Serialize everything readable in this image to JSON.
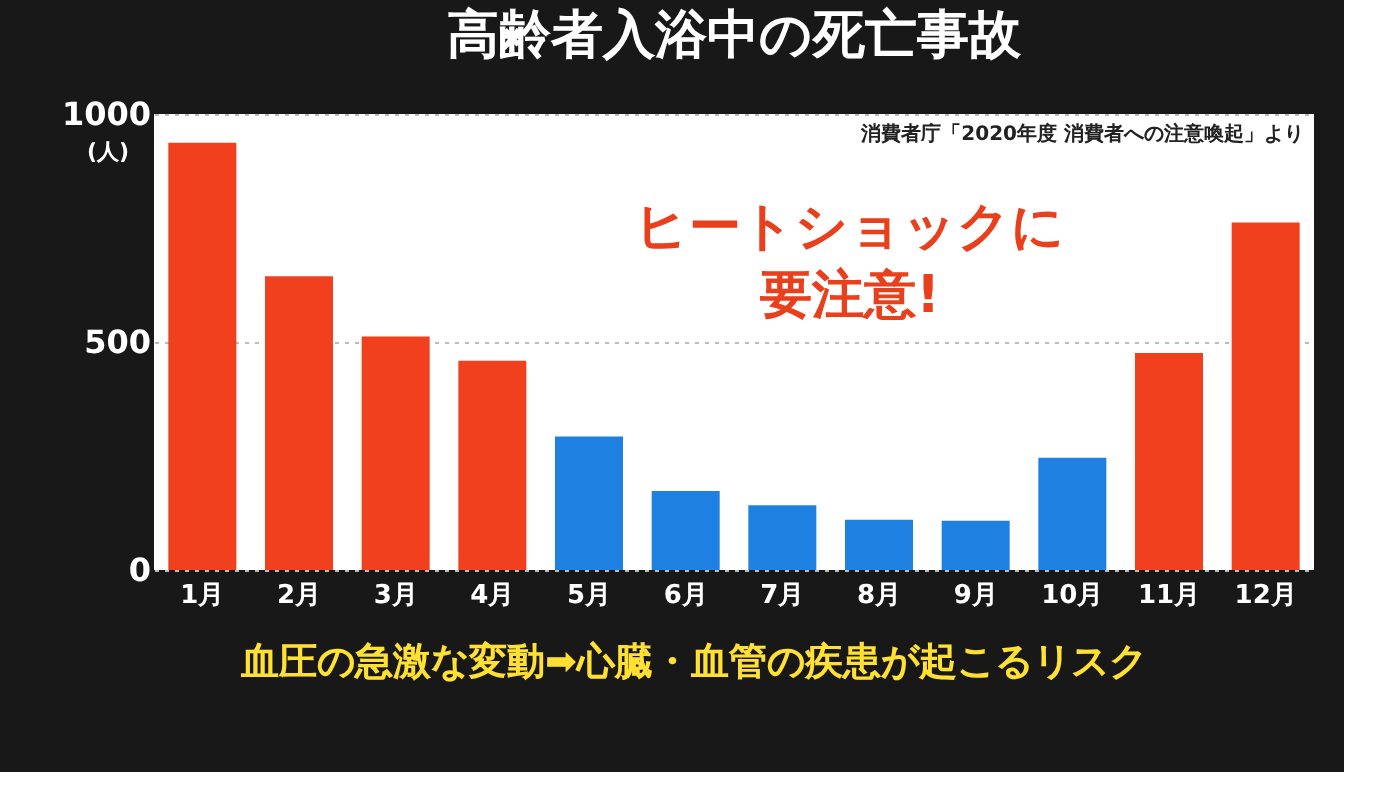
{
  "chart_data": {
    "type": "bar",
    "title": "高齢者入浴中の死亡事故",
    "ylabel": "(人)",
    "categories": [
      "1月",
      "2月",
      "3月",
      "4月",
      "5月",
      "6月",
      "7月",
      "8月",
      "9月",
      "10月",
      "11月",
      "12月"
    ],
    "values": [
      937,
      644,
      512,
      459,
      293,
      173,
      142,
      110,
      108,
      246,
      476,
      762
    ],
    "colors": [
      "#f0401e",
      "#f0401e",
      "#f0401e",
      "#f0401e",
      "#1e80e0",
      "#1e80e0",
      "#1e80e0",
      "#1e80e0",
      "#1e80e0",
      "#1e80e0",
      "#f0401e",
      "#f0401e"
    ],
    "ylim": [
      0,
      1000
    ],
    "yticks": [
      0,
      500,
      {
        "value": 1000,
        "label": "1000"
      }
    ],
    "grid": "y",
    "annotations": [
      "消費者庁「2020年度 消費者への注意喚起」より",
      "ヒートショックに",
      "要注意!",
      "血圧の急激な変動➡心臓・血管の疾患が起こるリスク"
    ]
  }
}
